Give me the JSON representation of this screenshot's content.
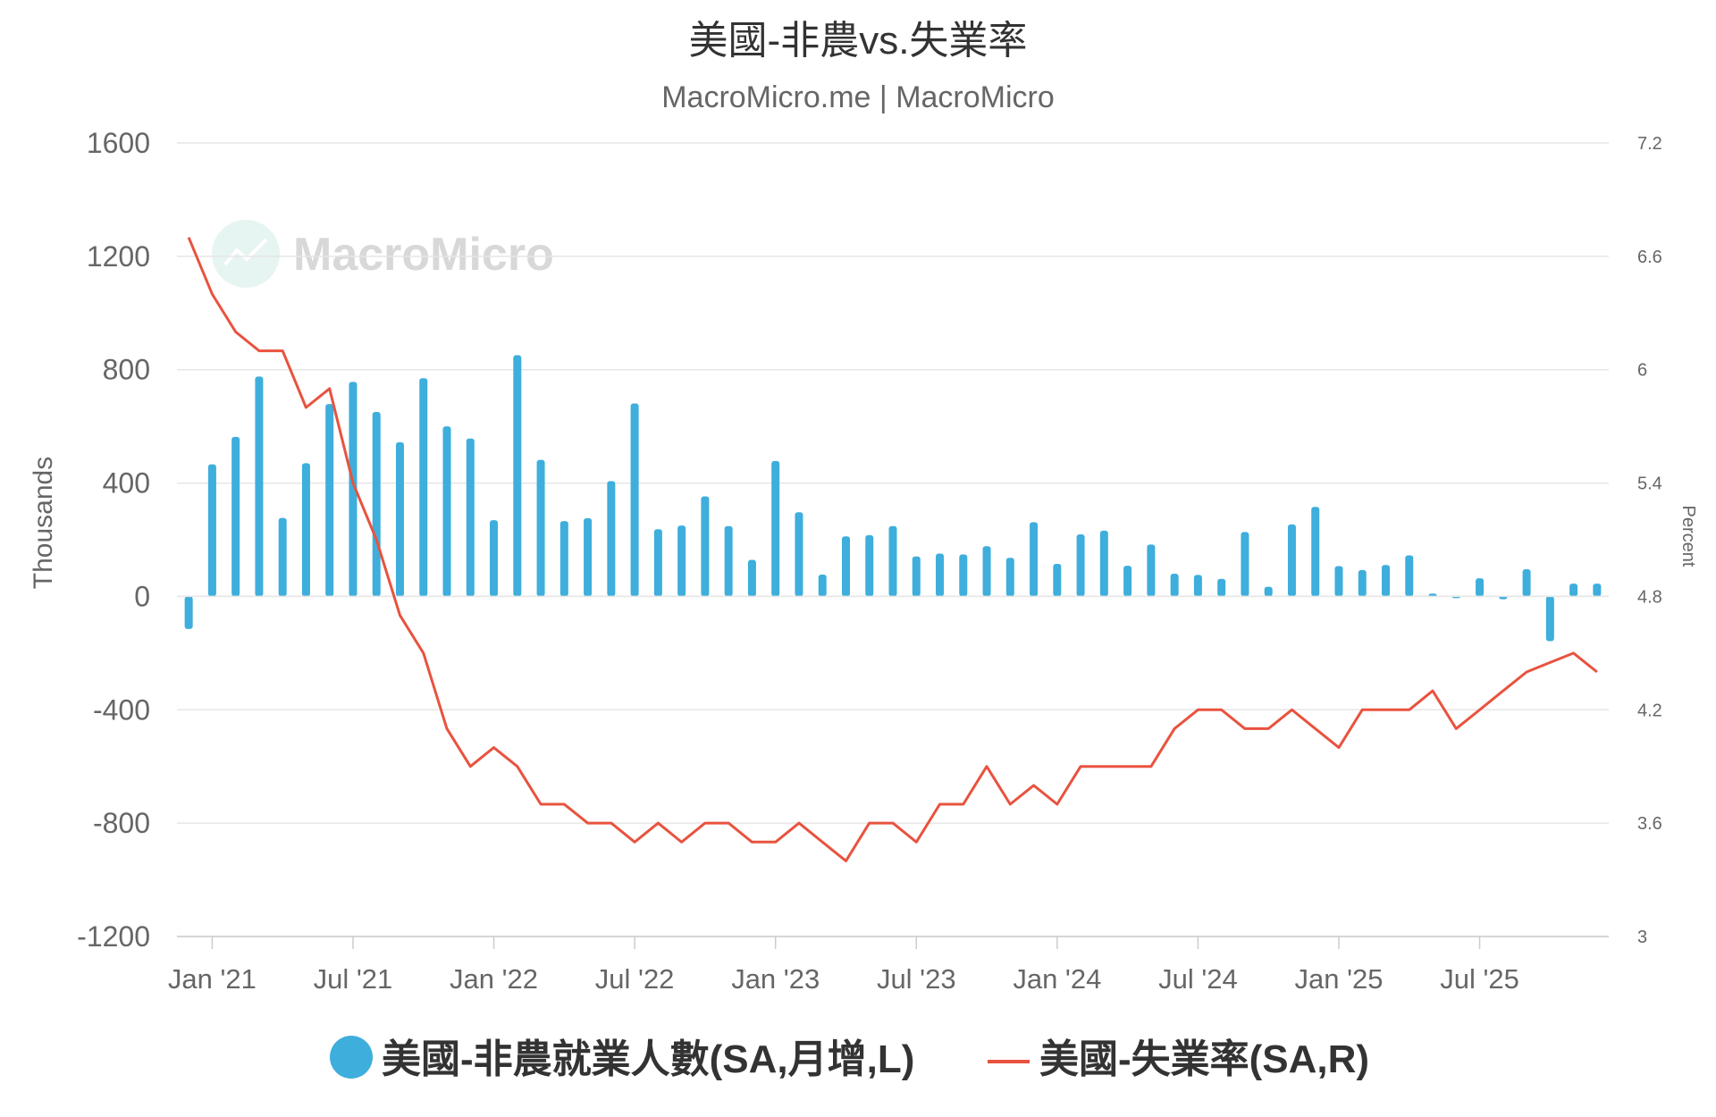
{
  "chart_data": {
    "type": "bar+line",
    "title": "美國-非農vs.失業率",
    "subtitle": "MacroMicro.me | MacroMicro",
    "watermark": "MacroMicro",
    "ylabel_left": "Thousands",
    "ylabel_right": "Percent",
    "ylim_left": [
      -1200,
      1600
    ],
    "ylim_right": [
      3,
      7.2
    ],
    "yticks_left": [
      "1600",
      "1200",
      "800",
      "400",
      "0",
      "-400",
      "-800",
      "-1200"
    ],
    "yticks_right": [
      "7.2",
      "6.6",
      "6",
      "5.4",
      "4.8",
      "4.2",
      "3.6",
      "3"
    ],
    "xticks": [
      "Jan '21",
      "Jul '21",
      "Jan '22",
      "Jul '22",
      "Jan '23",
      "Jul '23",
      "Jan '24",
      "Jul '24",
      "Jan '25",
      "Jul '25"
    ],
    "grid": true,
    "legend_position": "bottom-center",
    "series": [
      {
        "name": "美國-非農就業人數(SA,月增,L)",
        "type": "bar",
        "axis": "left",
        "color": "#3eaedc",
        "start": "2020-12",
        "values": [
          -115,
          466,
          563,
          776,
          277,
          470,
          679,
          757,
          651,
          544,
          770,
          600,
          557,
          269,
          851,
          482,
          266,
          276,
          407,
          681,
          237,
          250,
          353,
          248,
          129,
          478,
          297,
          77,
          212,
          216,
          248,
          141,
          151,
          148,
          177,
          136,
          262,
          115,
          219,
          232,
          108,
          183,
          80,
          76,
          62,
          227,
          34,
          254,
          316,
          107,
          93,
          111,
          145,
          10,
          -5,
          64,
          -10,
          96,
          -158,
          45,
          45
        ]
      },
      {
        "name": "美國-失業率(SA,R)",
        "type": "line",
        "axis": "right",
        "color": "#e8533f",
        "start": "2020-12",
        "values": [
          6.7,
          6.4,
          6.2,
          6.1,
          6.1,
          5.8,
          5.9,
          5.4,
          5.1,
          4.7,
          4.5,
          4.1,
          3.9,
          4.0,
          3.9,
          3.7,
          3.7,
          3.6,
          3.6,
          3.5,
          3.6,
          3.5,
          3.6,
          3.6,
          3.5,
          3.5,
          3.6,
          3.5,
          3.4,
          3.6,
          3.6,
          3.5,
          3.7,
          3.7,
          3.9,
          3.7,
          3.8,
          3.7,
          3.9,
          3.9,
          3.9,
          3.9,
          4.1,
          4.2,
          4.2,
          4.1,
          4.1,
          4.2,
          4.1,
          4.0,
          4.2,
          4.2,
          4.2,
          4.3,
          4.1,
          4.2,
          4.3,
          4.4,
          4.45,
          4.5,
          4.4
        ]
      }
    ]
  }
}
